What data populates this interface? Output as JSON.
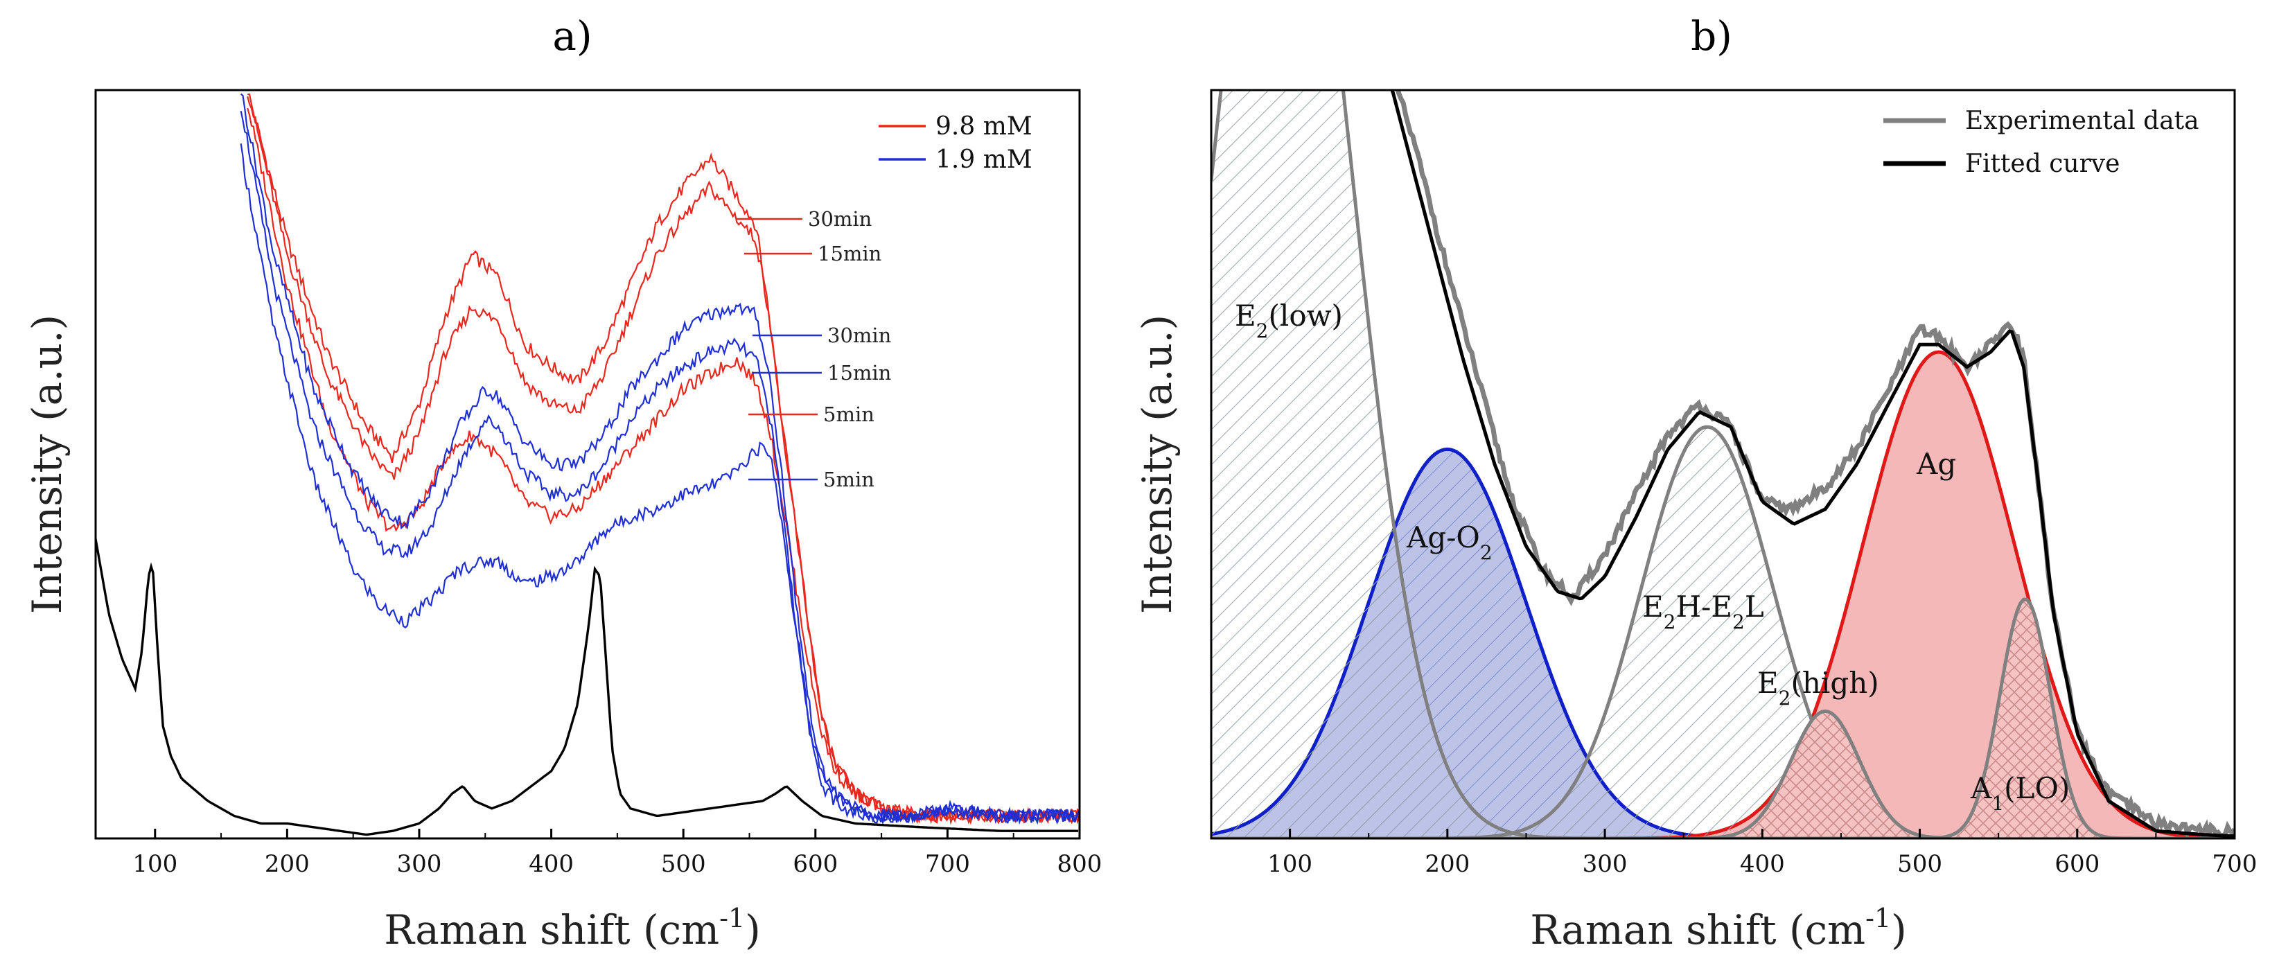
{
  "chart_data": [
    {
      "panel": "a)",
      "type": "line",
      "title": "a)",
      "xlabel": "Raman shift (cm",
      "xlabel_sup": "-1",
      "xlabel_end": ")",
      "ylabel": "Intensity (a.u.)",
      "xlim": [
        55,
        800
      ],
      "ylim": [
        0,
        100
      ],
      "xticks": [
        "100",
        "200",
        "300",
        "400",
        "500",
        "600",
        "700",
        "800"
      ],
      "legend": [
        {
          "label": "9.8 mM",
          "color": "#e8281e"
        },
        {
          "label": "1.9 mM",
          "color": "#1f2fd2"
        }
      ],
      "annotations": [
        {
          "text": "30min",
          "series": "red-30min"
        },
        {
          "text": "15min",
          "series": "red-15min"
        },
        {
          "text": "30min",
          "series": "blue-30min"
        },
        {
          "text": "15min",
          "series": "blue-15min"
        },
        {
          "text": "5min",
          "series": "red-5min"
        },
        {
          "text": "5min",
          "series": "blue-5min"
        }
      ],
      "series": [
        {
          "name": "red-30min",
          "color": "#e8281e",
          "x": [
            170,
            200,
            230,
            260,
            280,
            300,
            320,
            340,
            360,
            380,
            400,
            420,
            440,
            460,
            480,
            500,
            520,
            540,
            555,
            565,
            575,
            585,
            595,
            605,
            615,
            630,
            650,
            680,
            720,
            760,
            800
          ],
          "y": [
            100,
            80,
            65,
            55,
            51,
            58,
            70,
            78,
            75,
            66,
            63,
            61,
            66,
            74,
            82,
            87,
            91,
            86,
            82,
            70,
            55,
            42,
            28,
            16,
            10,
            6,
            4,
            3,
            3,
            3,
            3
          ]
        },
        {
          "name": "red-15min",
          "color": "#e8281e",
          "x": [
            170,
            200,
            230,
            260,
            280,
            300,
            320,
            340,
            360,
            380,
            400,
            420,
            440,
            460,
            480,
            500,
            520,
            540,
            555,
            565,
            575,
            585,
            595,
            605,
            615,
            630,
            650,
            680,
            720,
            760,
            800
          ],
          "y": [
            100,
            78,
            62,
            52,
            48,
            54,
            65,
            71,
            69,
            61,
            58,
            57,
            62,
            70,
            78,
            83,
            87,
            83,
            80,
            70,
            55,
            42,
            28,
            16,
            10,
            6,
            4,
            3,
            3,
            3,
            3
          ]
        },
        {
          "name": "red-5min",
          "color": "#e8281e",
          "x": [
            170,
            200,
            230,
            260,
            280,
            300,
            320,
            340,
            360,
            380,
            400,
            420,
            440,
            460,
            480,
            500,
            520,
            540,
            555,
            565,
            575,
            585,
            595,
            605,
            615,
            630,
            650,
            680,
            720,
            760,
            800
          ],
          "y": [
            98,
            74,
            56,
            45,
            41,
            44,
            51,
            54,
            51,
            45,
            43,
            44,
            48,
            52,
            56,
            60,
            62,
            64,
            61,
            55,
            45,
            34,
            23,
            14,
            9,
            6,
            4,
            3,
            3,
            3,
            3
          ]
        },
        {
          "name": "blue-30min",
          "color": "#1f2fd2",
          "x": [
            165,
            190,
            220,
            250,
            270,
            290,
            310,
            330,
            350,
            360,
            380,
            400,
            420,
            440,
            460,
            480,
            500,
            520,
            540,
            555,
            565,
            575,
            585,
            595,
            605,
            620,
            640,
            670,
            700,
            740,
            800
          ],
          "y": [
            100,
            78,
            60,
            49,
            44,
            42,
            47,
            55,
            60,
            59,
            53,
            50,
            50,
            54,
            60,
            64,
            68,
            70,
            71,
            70,
            62,
            48,
            32,
            18,
            9,
            5,
            3,
            3,
            4,
            3,
            3
          ]
        },
        {
          "name": "blue-15min",
          "color": "#1f2fd2",
          "x": [
            165,
            190,
            220,
            250,
            270,
            290,
            310,
            330,
            350,
            360,
            380,
            400,
            420,
            440,
            460,
            480,
            500,
            520,
            540,
            555,
            565,
            575,
            585,
            595,
            605,
            620,
            640,
            670,
            700,
            740,
            800
          ],
          "y": [
            98,
            74,
            55,
            44,
            39,
            38,
            42,
            50,
            56,
            55,
            49,
            46,
            46,
            50,
            56,
            60,
            63,
            65,
            66,
            64,
            57,
            44,
            29,
            16,
            8,
            5,
            3,
            3,
            4,
            3,
            3
          ]
        },
        {
          "name": "blue-5min",
          "color": "#1f2fd2",
          "x": [
            165,
            190,
            220,
            250,
            270,
            290,
            310,
            330,
            350,
            360,
            380,
            400,
            420,
            440,
            460,
            480,
            500,
            520,
            540,
            555,
            565,
            575,
            585,
            595,
            605,
            620,
            640,
            670,
            700,
            740,
            800
          ],
          "y": [
            92,
            68,
            48,
            36,
            31,
            29,
            32,
            36,
            37,
            37,
            34,
            35,
            37,
            41,
            43,
            44,
            46,
            47,
            49,
            52,
            52,
            42,
            28,
            15,
            7,
            4,
            3,
            3,
            4,
            3,
            3
          ]
        },
        {
          "name": "black-reference",
          "color": "#000000",
          "x": [
            55,
            65,
            75,
            85,
            90,
            95,
            98,
            102,
            106,
            112,
            120,
            140,
            160,
            180,
            200,
            220,
            240,
            260,
            280,
            300,
            315,
            325,
            333,
            342,
            355,
            370,
            385,
            400,
            410,
            420,
            428,
            433,
            437,
            441,
            446,
            452,
            460,
            480,
            500,
            520,
            540,
            560,
            570,
            578,
            590,
            605,
            630,
            680,
            740,
            800
          ],
          "y": [
            40,
            30,
            24,
            20,
            25,
            35,
            37,
            25,
            15,
            11,
            8,
            5,
            3,
            2,
            2,
            1.5,
            1,
            0.5,
            1,
            2,
            4,
            6,
            7,
            5,
            4,
            5,
            7,
            9,
            12,
            18,
            28,
            36,
            35,
            25,
            12,
            6,
            4,
            3,
            3.5,
            4,
            4.5,
            5,
            6,
            7,
            5,
            3,
            2,
            1.5,
            1,
            1
          ]
        }
      ]
    },
    {
      "panel": "b)",
      "type": "area",
      "title": "b)",
      "xlabel": "Raman shift (cm",
      "xlabel_sup": "-1",
      "xlabel_end": ")",
      "ylabel": "Intensity (a.u.)",
      "xlim": [
        50,
        700
      ],
      "ylim": [
        0,
        100
      ],
      "xticks": [
        "100",
        "200",
        "300",
        "400",
        "500",
        "600",
        "700"
      ],
      "legend": [
        {
          "label": "Experimental data",
          "color": "#808080"
        },
        {
          "label": "Fitted curve",
          "color": "#000000"
        }
      ],
      "peaks": [
        {
          "name": "E2(low)",
          "label": "E",
          "sub": "2",
          "rest": "(low)",
          "center": 95,
          "height": 145,
          "sigma": 45,
          "line_color": "#808080",
          "fill": "hatch"
        },
        {
          "name": "Ag-O2",
          "label": "Ag-O",
          "sub": "2",
          "rest": "",
          "center": 200,
          "height": 52,
          "sigma": 50,
          "line_color": "#1020c8",
          "fill": "#b8c0e6"
        },
        {
          "name": "E2H-E2L",
          "label": "E",
          "sub": "2",
          "rest": "H-E",
          "sub2": "2",
          "rest2": "L",
          "center": 365,
          "height": 55,
          "sigma": 42,
          "line_color": "#808080",
          "fill": "hatch"
        },
        {
          "name": "E2(high)",
          "label": "E",
          "sub": "2",
          "rest": "(high)",
          "center": 440,
          "height": 17,
          "sigma": 22,
          "line_color": "#808080",
          "fill": "crosshatch-red"
        },
        {
          "name": "Ag",
          "label": "Ag",
          "sub": "",
          "rest": "",
          "center": 512,
          "height": 65,
          "sigma": 48,
          "line_color": "#e01818",
          "fill": "#f4b4b4"
        },
        {
          "name": "A1(LO)",
          "label": "A",
          "sub": "1",
          "rest": "(LO)",
          "center": 567,
          "height": 32,
          "sigma": 16,
          "line_color": "#808080",
          "fill": "crosshatch-red"
        }
      ],
      "series": [
        {
          "name": "Experimental data",
          "color": "#808080",
          "x": [
            160,
            170,
            180,
            200,
            220,
            240,
            260,
            280,
            300,
            320,
            340,
            360,
            380,
            400,
            420,
            440,
            460,
            480,
            500,
            512,
            530,
            545,
            558,
            566,
            575,
            585,
            600,
            620,
            650,
            680,
            700
          ],
          "y": [
            105,
            99,
            92,
            76,
            61,
            46,
            36,
            32,
            38,
            46,
            54,
            58,
            55,
            45,
            44,
            47,
            52,
            60,
            68,
            67,
            63,
            66,
            69,
            64,
            48,
            30,
            14,
            6,
            2,
            1,
            1
          ]
        },
        {
          "name": "Fitted curve",
          "color": "#000000",
          "x": [
            155,
            165,
            175,
            190,
            210,
            230,
            250,
            270,
            285,
            300,
            320,
            340,
            360,
            380,
            400,
            420,
            440,
            460,
            480,
            500,
            512,
            530,
            545,
            558,
            566,
            575,
            585,
            600,
            620,
            650,
            680,
            700
          ],
          "y": [
            105,
            100,
            92,
            80,
            64,
            50,
            39,
            33,
            32,
            35,
            43,
            52,
            57,
            55,
            45,
            42,
            44,
            50,
            58,
            66,
            66,
            63,
            65,
            68,
            63,
            48,
            30,
            14,
            5,
            1,
            0.5,
            0.3
          ]
        }
      ]
    }
  ]
}
